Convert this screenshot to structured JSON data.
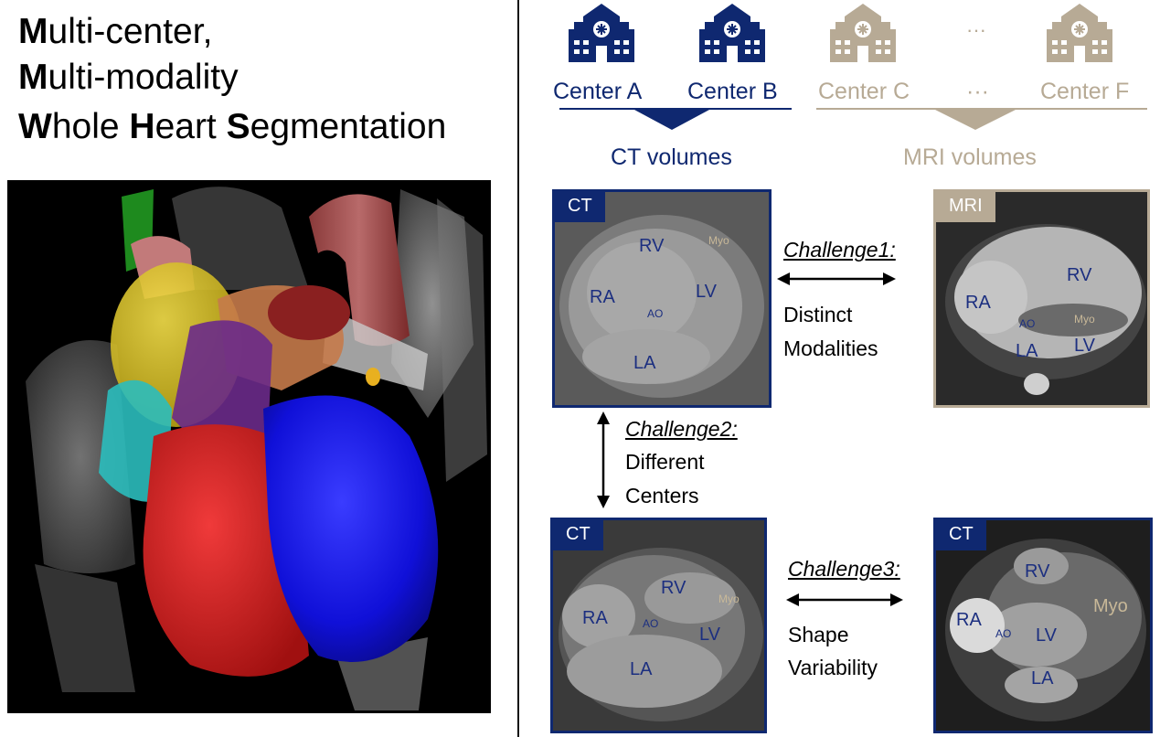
{
  "title": {
    "line1": {
      "bold": "M",
      "rest": "ulti-center,"
    },
    "line2": {
      "bold": "M",
      "rest": "ulti-modality"
    },
    "line3": {
      "b1": "W",
      "t1": "hole ",
      "b2": "H",
      "t2": "eart ",
      "b3": "S",
      "t3": "egmentation"
    }
  },
  "centers": {
    "a": "Center A",
    "b": "Center B",
    "c": "Center C",
    "ellipsis_label": "···",
    "ellipsis_icon": "···",
    "f": "Center F"
  },
  "volumes": {
    "ct": "CT volumes",
    "mri": "MRI volumes"
  },
  "scans": {
    "s1": {
      "tag": "CT",
      "rv": "RV",
      "myo": "Myo",
      "ra": "RA",
      "lv": "LV",
      "ao": "AO",
      "la": "LA"
    },
    "s2": {
      "tag": "MRI",
      "rv": "RV",
      "ra": "RA",
      "ao": "AO",
      "myo": "Myo",
      "la": "LA",
      "lv": "LV"
    },
    "s3": {
      "tag": "CT",
      "rv": "RV",
      "myo": "Myo",
      "ra": "RA",
      "ao": "AO",
      "lv": "LV",
      "la": "LA"
    },
    "s4": {
      "tag": "CT",
      "rv": "RV",
      "myo": "Myo",
      "ra": "RA",
      "ao": "AO",
      "lv": "LV",
      "la": "LA"
    }
  },
  "challenges": {
    "c1": {
      "title": "Challenge1:",
      "line1": "Distinct",
      "line2": "Modalities"
    },
    "c2": {
      "title": "Challenge2:",
      "line1": "Different",
      "line2": "Centers"
    },
    "c3": {
      "title": "Challenge3:",
      "line1": "Shape",
      "line2": "Variability"
    }
  },
  "colors": {
    "navy": "#0f2870",
    "tan": "#b7aa95"
  },
  "icons": {
    "hospital": "hospital-icon",
    "arrow": "double-arrow-icon"
  }
}
